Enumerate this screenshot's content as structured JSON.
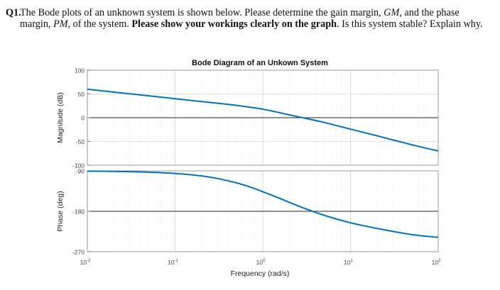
{
  "question": {
    "number": "Q1.",
    "t1": "The Bode plots of an unknown system is shown below. Please determine the gain margin, ",
    "gm": "GM",
    "t2": ", and the phase margin, ",
    "pm": "PM",
    "t3": ", of the system. ",
    "bold": "Please show your workings clearly on the graph",
    "t4": ". Is this system stable? Explain why."
  },
  "chart_data": {
    "type": "line",
    "title": "Bode Diagram of an Unkown System",
    "xlabel": "Frequency (rad/s)",
    "x_scale": "log",
    "xlim": [
      0.01,
      100
    ],
    "x_ticks": [
      {
        "base": "10",
        "exp": "-2"
      },
      {
        "base": "10",
        "exp": "-1"
      },
      {
        "base": "10",
        "exp": "0"
      },
      {
        "base": "10",
        "exp": "1"
      },
      {
        "base": "10",
        "exp": "2"
      }
    ],
    "grid": true,
    "line_color": "#0072BD",
    "panels": [
      {
        "name": "magnitude",
        "ylabel": "Magnitude (dB)",
        "ylim": [
          -100,
          100
        ],
        "yticks": [
          100,
          50,
          0,
          -50,
          -100
        ],
        "reference_line": 0,
        "x": [
          0.01,
          0.02,
          0.05,
          0.1,
          0.2,
          0.5,
          1,
          2,
          3.2,
          5,
          10,
          20,
          50,
          100
        ],
        "y": [
          60,
          54,
          46,
          40,
          34,
          26,
          18,
          6,
          -2,
          -10,
          -24,
          -38,
          -57,
          -70
        ]
      },
      {
        "name": "phase",
        "ylabel": "Phase (deg)",
        "ylim": [
          -270,
          -90
        ],
        "yticks": [
          -90,
          -180,
          -270
        ],
        "reference_line": -180,
        "x": [
          0.01,
          0.02,
          0.05,
          0.1,
          0.2,
          0.3,
          0.5,
          0.7,
          1,
          1.5,
          2,
          3,
          5,
          10,
          20,
          50,
          100
        ],
        "y": [
          -90.6,
          -91.1,
          -92.9,
          -95.7,
          -101.3,
          -106.7,
          -116.6,
          -125.3,
          -136.4,
          -149.9,
          -159.9,
          -173.5,
          -188.9,
          -205.6,
          -218.1,
          -231.9,
          -237.9
        ]
      }
    ]
  }
}
